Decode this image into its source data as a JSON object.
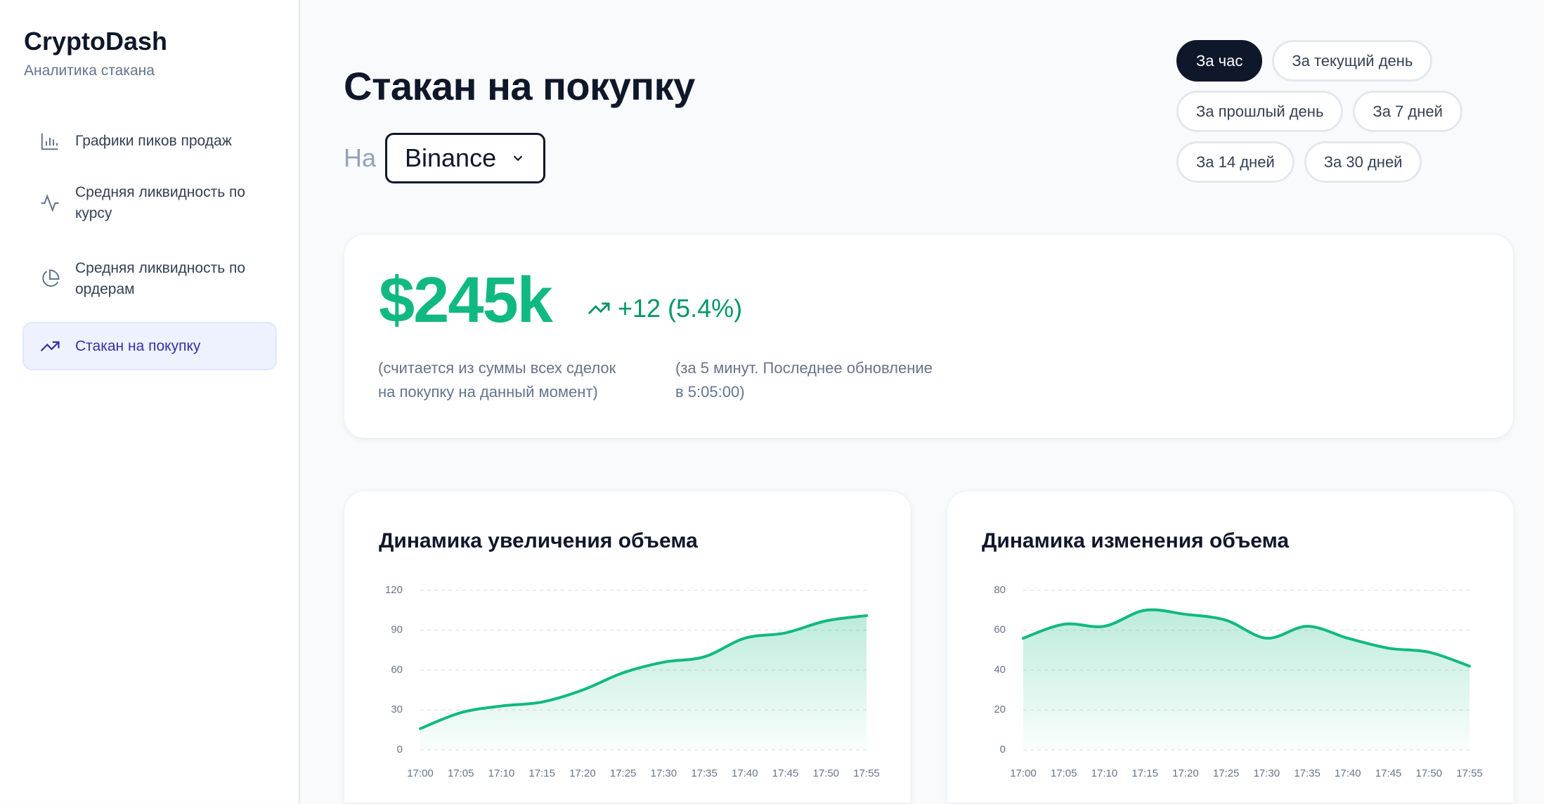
{
  "sidebar": {
    "brand": "CryptoDash",
    "subtitle": "Аналитика стакана",
    "nav": [
      {
        "label": "Графики пиков продаж",
        "active": false
      },
      {
        "label": "Средняя ликвидность по курсу",
        "active": false
      },
      {
        "label": "Средняя ликвидность по ордерам",
        "active": false
      },
      {
        "label": "Стакан на покупку",
        "active": true
      }
    ]
  },
  "header": {
    "title": "Стакан на покупку",
    "exchange_prefix": "На",
    "exchange": "Binance",
    "periods": [
      {
        "label": "За час",
        "active": true
      },
      {
        "label": "За текущий день",
        "active": false
      },
      {
        "label": "За прошлый день",
        "active": false
      },
      {
        "label": "За 7 дней",
        "active": false
      },
      {
        "label": "За 14 дней",
        "active": false
      },
      {
        "label": "За 30 дней",
        "active": false
      }
    ]
  },
  "summary": {
    "value": "$245k",
    "change": "+12 (5.4%)",
    "note": [
      "(считается из суммы всех сделок",
      "на покупку на данный момент)"
    ],
    "update": [
      "(за 5 минут. Последнее обновление",
      "в 5:05:00)"
    ]
  },
  "chart_data": [
    {
      "type": "line",
      "title": "Динамика увеличения объема",
      "categories": [
        "17:00",
        "17:05",
        "17:10",
        "17:15",
        "17:20",
        "17:25",
        "17:30",
        "17:35",
        "17:40",
        "17:45",
        "17:50",
        "17:55"
      ],
      "values": [
        16,
        28,
        33,
        36,
        45,
        58,
        66,
        70,
        84,
        88,
        97,
        101
      ],
      "color": "#10b981",
      "ylim": [
        0,
        120
      ],
      "yticks": [
        0,
        30,
        60,
        90,
        120
      ],
      "grid": true
    },
    {
      "type": "line",
      "title": "Динамика изменения объема",
      "categories": [
        "17:00",
        "17:05",
        "17:10",
        "17:15",
        "17:20",
        "17:25",
        "17:30",
        "17:35",
        "17:40",
        "17:45",
        "17:50",
        "17:55"
      ],
      "values": [
        56,
        63,
        62,
        70,
        68,
        65,
        56,
        62,
        56,
        51,
        49,
        42
      ],
      "color": "#10b981",
      "ylim": [
        0,
        80
      ],
      "yticks": [
        0,
        20,
        40,
        60,
        80
      ],
      "grid": true
    }
  ]
}
